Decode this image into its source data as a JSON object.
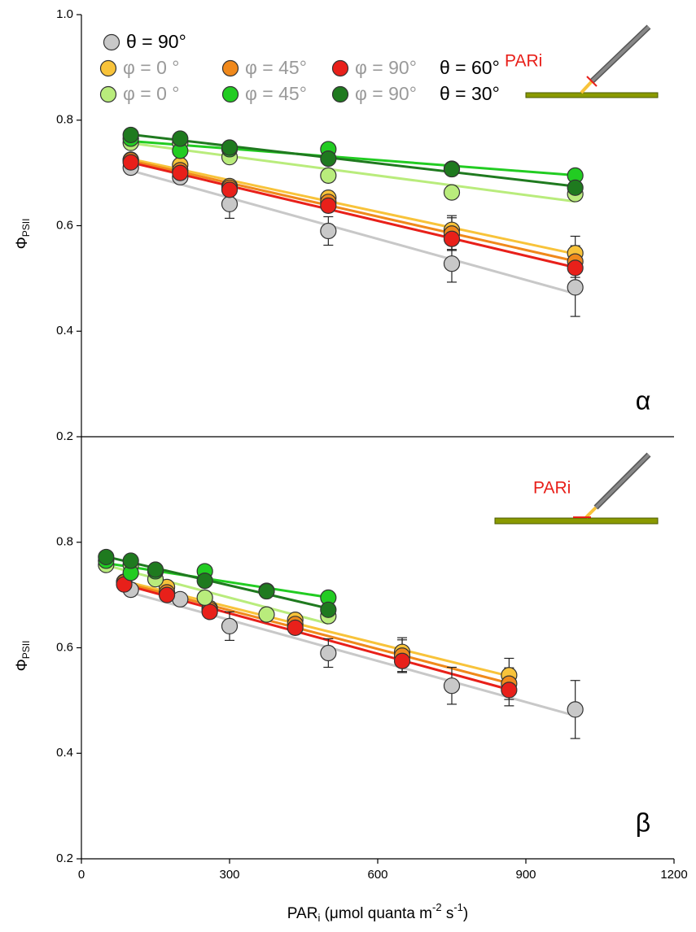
{
  "chart_data": [
    {
      "type": "scatter",
      "panel_label": "α",
      "ylabel": "Φ",
      "ylabel_sub": "PSII",
      "ylim": [
        0.2,
        1.0
      ],
      "yticks": [
        0.2,
        0.4,
        0.6,
        0.8,
        {
          "value": 1.0,
          "label": "1.0"
        }
      ],
      "xlim": [
        0,
        1200
      ],
      "inset_label": "PARi",
      "legend_groups": [
        "θ = 60°",
        "θ = 30°"
      ],
      "series": [
        {
          "name": "θ = 90°",
          "color": "#c8c8c8",
          "x": [
            100,
            200,
            300,
            500,
            750,
            1000
          ],
          "values": [
            0.71,
            0.692,
            0.641,
            0.59,
            0.528,
            0.483
          ],
          "errors": [
            0.012,
            0.01,
            0.027,
            0.027,
            0.035,
            0.055
          ]
        },
        {
          "name": "φ = 0 °",
          "color": "#f8c33a",
          "x": [
            100,
            200,
            300,
            500,
            750,
            1000
          ],
          "values": [
            0.725,
            0.715,
            0.675,
            0.653,
            0.592,
            0.548
          ],
          "errors": [
            0.01,
            0.01,
            0.012,
            0.012,
            0.027,
            0.032
          ]
        },
        {
          "name": "φ = 45°",
          "color": "#f0891c",
          "x": [
            100,
            200,
            300,
            500,
            750,
            1000
          ],
          "values": [
            0.724,
            0.705,
            0.672,
            0.645,
            0.585,
            0.532
          ],
          "errors": [
            0.01,
            0.01,
            0.012,
            0.012,
            0.03,
            0.03
          ]
        },
        {
          "name": "φ = 90°",
          "color": "#e8201a",
          "x": [
            100,
            200,
            300,
            500,
            750,
            1000
          ],
          "values": [
            0.72,
            0.7,
            0.668,
            0.638,
            0.575,
            0.52
          ],
          "errors": [
            0.01,
            0.01,
            0.012,
            0.012,
            0.022,
            0.03
          ]
        },
        {
          "name": "φ = 0 °",
          "color": "#b9ec7c",
          "x": [
            100,
            200,
            300,
            500,
            750,
            1000
          ],
          "values": [
            0.757,
            0.757,
            0.73,
            0.695,
            0.663,
            0.66
          ],
          "errors": [
            0.01,
            0.01,
            0.01,
            0.012,
            0.012,
            0.012
          ]
        },
        {
          "name": "φ = 45°",
          "color": "#22cc22",
          "x": [
            100,
            200,
            300,
            500,
            750,
            1000
          ],
          "values": [
            0.765,
            0.742,
            0.745,
            0.745,
            0.708,
            0.695
          ],
          "errors": [
            0.008,
            0.008,
            0.008,
            0.01,
            0.01,
            0.01
          ]
        },
        {
          "name": "φ = 90°",
          "color": "#1f7a1f",
          "x": [
            100,
            200,
            300,
            500,
            750,
            1000
          ],
          "values": [
            0.772,
            0.765,
            0.748,
            0.727,
            0.707,
            0.672
          ],
          "errors": [
            0.008,
            0.008,
            0.008,
            0.01,
            0.01,
            0.01
          ]
        }
      ]
    },
    {
      "type": "scatter",
      "panel_label": "β",
      "ylabel": "Φ",
      "ylabel_sub": "PSII",
      "ylim": [
        0.2,
        1.0
      ],
      "yticks": [
        0.2,
        0.4,
        0.6,
        0.8
      ],
      "xlim": [
        0,
        1200
      ],
      "xticks": [
        0,
        300,
        600,
        900,
        1200
      ],
      "inset_label": "PARi",
      "xlabel": [
        {
          "text": "PAR"
        },
        {
          "text": "i",
          "shift": "sub"
        },
        {
          "text": " (μmol quanta m"
        },
        {
          "text": "-2",
          "shift": "super"
        },
        {
          "text": " s"
        },
        {
          "text": "-1",
          "shift": "super"
        },
        {
          "text": ")"
        }
      ],
      "series": [
        {
          "color": "#c8c8c8",
          "x": [
            100,
            200,
            300,
            500,
            750,
            1000
          ],
          "values": [
            0.71,
            0.692,
            0.641,
            0.59,
            0.528,
            0.483
          ],
          "errors": [
            0.012,
            0.01,
            0.027,
            0.027,
            0.035,
            0.055
          ]
        },
        {
          "color": "#f8c33a",
          "x": [
            86.6,
            173.2,
            259.8,
            433,
            649.5,
            866
          ],
          "values": [
            0.725,
            0.715,
            0.675,
            0.653,
            0.592,
            0.548
          ],
          "errors": [
            0.01,
            0.01,
            0.012,
            0.012,
            0.027,
            0.032
          ]
        },
        {
          "color": "#f0891c",
          "x": [
            86.6,
            173.2,
            259.8,
            433,
            649.5,
            866
          ],
          "values": [
            0.724,
            0.705,
            0.672,
            0.645,
            0.585,
            0.532
          ],
          "errors": [
            0.01,
            0.01,
            0.012,
            0.012,
            0.03,
            0.03
          ]
        },
        {
          "color": "#e8201a",
          "x": [
            86.6,
            173.2,
            259.8,
            433,
            649.5,
            866
          ],
          "values": [
            0.72,
            0.7,
            0.668,
            0.638,
            0.575,
            0.52
          ],
          "errors": [
            0.01,
            0.01,
            0.012,
            0.012,
            0.022,
            0.03
          ]
        },
        {
          "color": "#b9ec7c",
          "x": [
            50,
            100,
            150,
            250,
            375,
            500
          ],
          "values": [
            0.757,
            0.757,
            0.73,
            0.695,
            0.663,
            0.66
          ],
          "errors": [
            0.01,
            0.01,
            0.01,
            0.012,
            0.012,
            0.012
          ]
        },
        {
          "color": "#22cc22",
          "x": [
            50,
            100,
            150,
            250,
            375,
            500
          ],
          "values": [
            0.765,
            0.742,
            0.745,
            0.745,
            0.708,
            0.695
          ],
          "errors": [
            0.008,
            0.008,
            0.008,
            0.01,
            0.01,
            0.01
          ]
        },
        {
          "color": "#1f7a1f",
          "x": [
            50,
            100,
            150,
            250,
            375,
            500
          ],
          "values": [
            0.772,
            0.765,
            0.748,
            0.727,
            0.707,
            0.672
          ],
          "errors": [
            0.008,
            0.008,
            0.008,
            0.01,
            0.01,
            0.01
          ]
        }
      ]
    }
  ]
}
